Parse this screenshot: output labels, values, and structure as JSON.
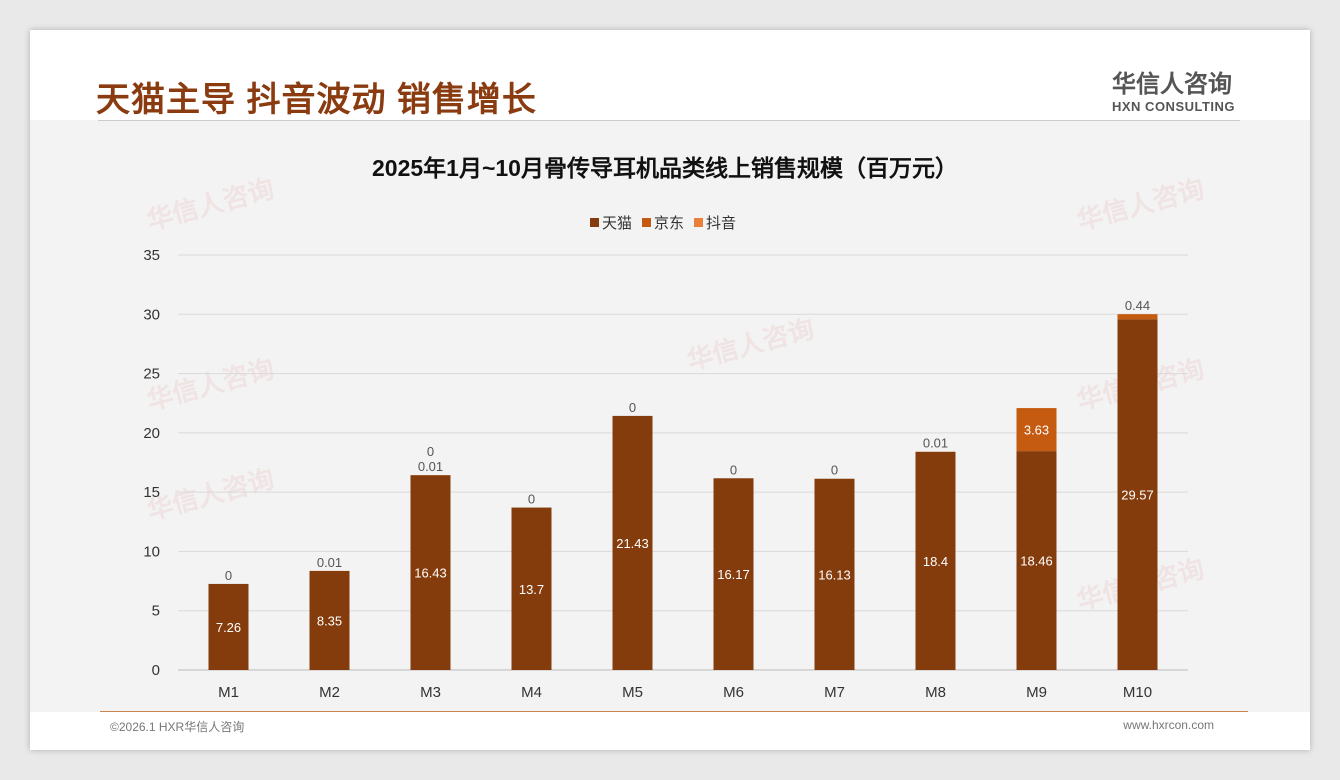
{
  "header": {
    "title": "天猫主导 抖音波动 销售增长",
    "logo_cn": "华信人咨询",
    "logo_en": "HXN CONSULTING"
  },
  "footer": {
    "left": "©2026.1 HXR华信人咨询",
    "right": "www.hxrcon.com"
  },
  "colors": {
    "tmall": "#843c0c",
    "jd": "#c55a11",
    "douyin": "#e97f3a"
  },
  "chart_data": {
    "type": "bar",
    "stacked": true,
    "title": "2025年1月~10月骨传导耳机品类线上销售规模（百万元）",
    "categories": [
      "M1",
      "M2",
      "M3",
      "M4",
      "M5",
      "M6",
      "M7",
      "M8",
      "M9",
      "M10"
    ],
    "series": [
      {
        "name": "天猫",
        "values": [
          7.26,
          8.35,
          16.43,
          13.7,
          21.43,
          16.17,
          16.13,
          18.4,
          18.46,
          29.57
        ]
      },
      {
        "name": "京东",
        "values": [
          0,
          0.01,
          0.01,
          0,
          0,
          0,
          0,
          0.01,
          3.63,
          0.44
        ]
      },
      {
        "name": "抖音",
        "values": [
          null,
          null,
          0,
          null,
          null,
          null,
          null,
          null,
          null,
          null
        ]
      }
    ],
    "ylim": [
      0,
      35
    ],
    "yticks": [
      0,
      5,
      10,
      15,
      20,
      25,
      30,
      35
    ],
    "legend": "top-center",
    "grid": true,
    "xlabel": "",
    "ylabel": ""
  }
}
